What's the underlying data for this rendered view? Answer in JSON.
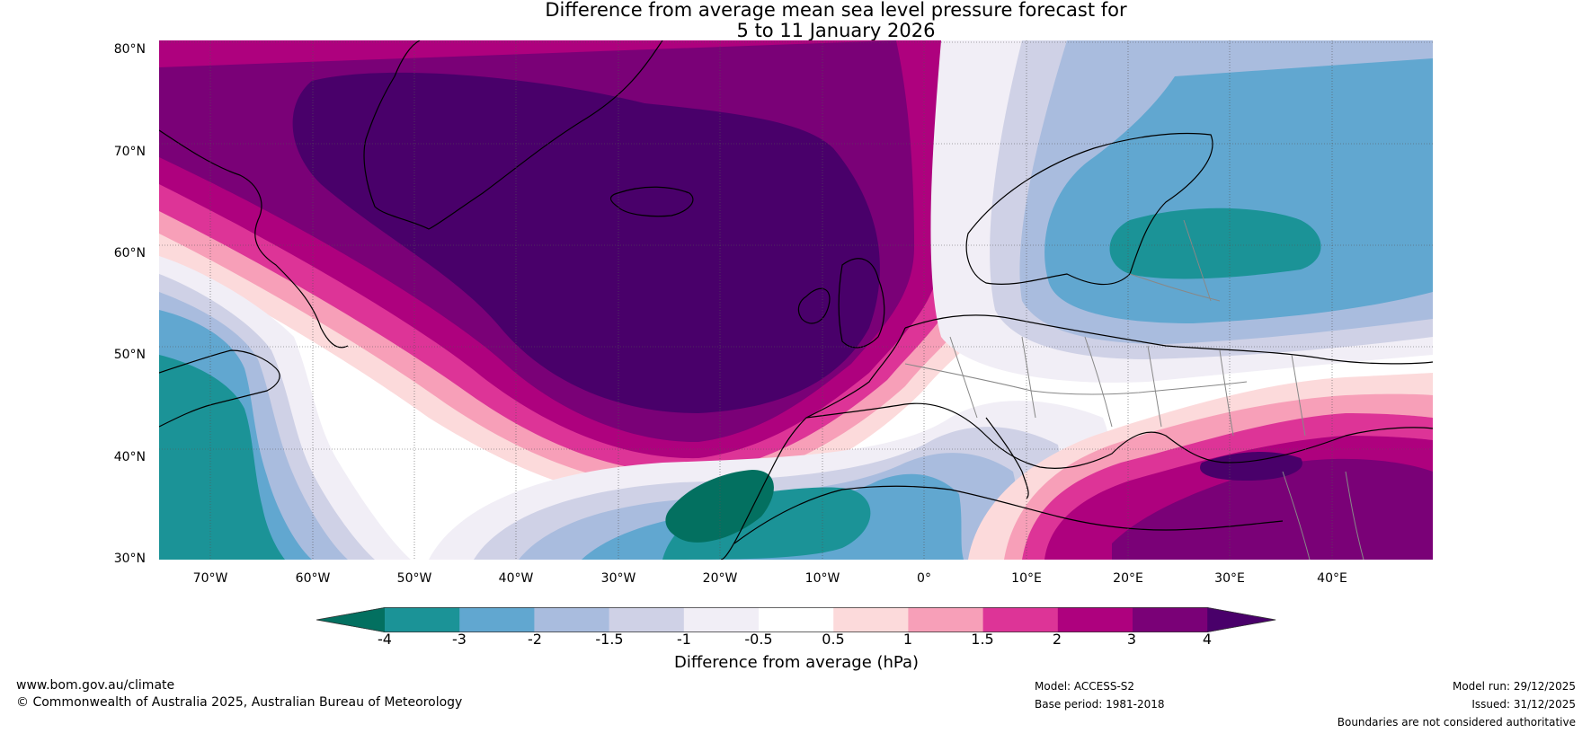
{
  "title_line1": "Difference from average mean sea level pressure forecast for",
  "title_line2": "5 to 11 January 2026",
  "latitude_labels": [
    "80°N",
    "70°N",
    "60°N",
    "50°N",
    "40°N",
    "30°N"
  ],
  "longitude_labels": [
    "70°W",
    "60°W",
    "50°W",
    "40°W",
    "30°W",
    "20°W",
    "10°W",
    "0°",
    "10°E",
    "20°E",
    "30°E",
    "40°E"
  ],
  "colorbar": {
    "label": "Difference from average (hPa)",
    "ticks": [
      "-4",
      "-3",
      "-2",
      "-1.5",
      "-1",
      "-0.5",
      "0.5",
      "1",
      "1.5",
      "2",
      "3",
      "4"
    ],
    "colors": [
      "#037060",
      "#1b9397",
      "#61a7d0",
      "#a9bcde",
      "#cfd1e6",
      "#f1eef6",
      "#ffffff",
      "#fcdadb",
      "#f79fb8",
      "#dd3497",
      "#ae017e",
      "#7a0177",
      "#49006a"
    ]
  },
  "footer": {
    "website": "www.bom.gov.au/climate",
    "copyright": "© Commonwealth of Australia 2025, Australian Bureau of Meteorology",
    "model": "Model: ACCESS-S2",
    "base_period": "Base period: 1981-2018",
    "model_run": "Model run: 29/12/2025",
    "issued": "Issued: 31/12/2025",
    "disclaimer": "Boundaries are not considered authoritative"
  }
}
